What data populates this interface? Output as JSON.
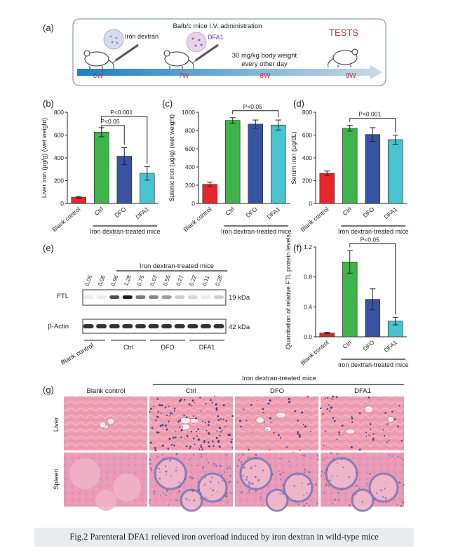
{
  "panel_a": {
    "label": "(a)",
    "title": "Balb/c mice  I.V. administration",
    "drug1": "Iron dextran",
    "drug2": "DFA1",
    "dose_line1": "30 mg/kg body weight",
    "dose_line2": "every other day",
    "tests": "TESTS",
    "weeks": [
      "6W",
      "7W",
      "8W",
      "9W"
    ]
  },
  "group_label": "Iron dextran-treated mice",
  "chart_data": [
    {
      "id": "b",
      "label": "(b)",
      "type": "bar",
      "categories": [
        "Blank control",
        "Ctrl",
        "DFO",
        "DFA1"
      ],
      "values": [
        55,
        625,
        415,
        265
      ],
      "errors": [
        8,
        40,
        75,
        60
      ],
      "ylabel": "Liver iron (μg/g) (wet weight)",
      "ylim": [
        0,
        800
      ],
      "yticks": [
        0,
        200,
        400,
        600,
        800
      ],
      "annotations": [
        "P<0.001",
        "P<0.05"
      ]
    },
    {
      "id": "c",
      "label": "(c)",
      "type": "bar",
      "categories": [
        "Blank control",
        "Ctrl",
        "DFO",
        "DFA1"
      ],
      "values": [
        210,
        910,
        870,
        860
      ],
      "errors": [
        25,
        30,
        45,
        55
      ],
      "ylabel": "Splenic iron (μg/g) (wet weight)",
      "ylim": [
        0,
        1000
      ],
      "yticks": [
        0,
        200,
        400,
        600,
        800,
        1000
      ],
      "annotations": [
        "P<0.05"
      ]
    },
    {
      "id": "d",
      "label": "(d)",
      "type": "bar",
      "categories": [
        "Blank control",
        "Ctrl",
        "DFO",
        "DFA1"
      ],
      "values": [
        265,
        660,
        605,
        560
      ],
      "errors": [
        20,
        25,
        60,
        40
      ],
      "ylabel": "Serum iron (μg/dL)",
      "ylim": [
        0,
        800
      ],
      "yticks": [
        0,
        200,
        400,
        600,
        800
      ],
      "annotations": [
        "P<0.001"
      ]
    },
    {
      "id": "f",
      "label": "(f)",
      "type": "bar",
      "categories": [
        "Blank control",
        "Ctrl",
        "DFO",
        "DFA1"
      ],
      "values": [
        0.05,
        1.0,
        0.5,
        0.21
      ],
      "errors": [
        0.01,
        0.15,
        0.14,
        0.05
      ],
      "ylabel": "Quantitation of relative FTL protein levels",
      "ylim": [
        0,
        1.2
      ],
      "yticks": [
        "0.0",
        "0.4",
        "0.8",
        "1.2"
      ],
      "annotations": [
        "P<0.05"
      ]
    }
  ],
  "bar_colors": [
    "#e8262b",
    "#3fb549",
    "#3953a4",
    "#48c3cf"
  ],
  "panel_e": {
    "label": "(e)",
    "group_label": "Iron dextran-treated mice",
    "lane_values": [
      "0.05",
      "0.06",
      "0.96",
      "1.28",
      "0.75",
      "0.67",
      "0.55",
      "0.27",
      "0.22",
      "0.11",
      "0.28"
    ],
    "row1": "FTL",
    "row1_kda": "19 kDa",
    "row2": "β-Actin",
    "row2_kda": "42 kDa",
    "groups": [
      "Blank control",
      "Ctrl",
      "DFO",
      "DFA1"
    ]
  },
  "panel_g": {
    "label": "(g)",
    "group_label": "Iron dextran-treated mice",
    "columns": [
      "Blank control",
      "Ctrl",
      "DFO",
      "DFA1"
    ],
    "rows": [
      "Liver",
      "Spleen"
    ]
  },
  "caption": "Fig.2 Parenteral DFA1 relieved iron overload induced by iron dextran in wild-type mice"
}
